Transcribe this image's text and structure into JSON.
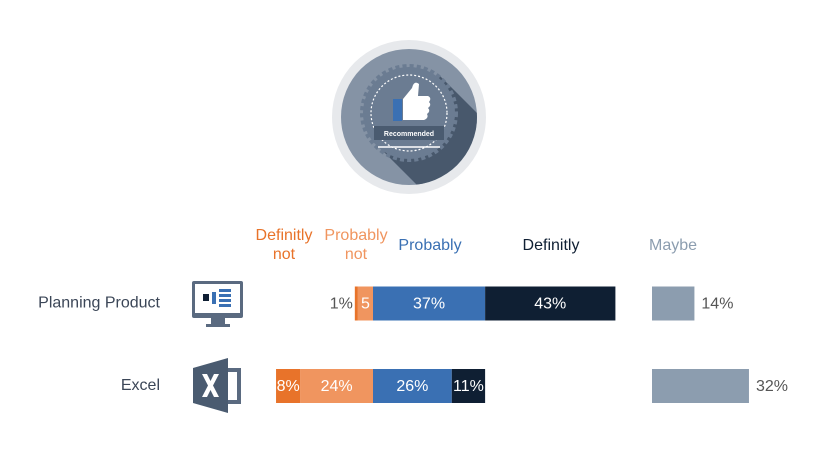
{
  "badge_label": "Recommended",
  "chart_data": {
    "type": "bar",
    "categories": [
      "Planning Product",
      "Excel"
    ],
    "series": [
      {
        "name": "Definitly not",
        "color": "#e8732a",
        "values": [
          1,
          8
        ],
        "value_labels": [
          "1%",
          "8%"
        ]
      },
      {
        "name": "Probably not",
        "color": "#f0955f",
        "values": [
          5,
          24
        ],
        "value_labels": [
          "5",
          "24%"
        ]
      },
      {
        "name": "Probably",
        "color": "#3a70b3",
        "values": [
          37,
          26
        ],
        "value_labels": [
          "37%",
          "26%"
        ]
      },
      {
        "name": "Definitly",
        "color": "#0f1f33",
        "values": [
          43,
          11
        ],
        "value_labels": [
          "43%",
          "11%"
        ]
      },
      {
        "name": "Maybe",
        "color": "#8c9daf",
        "values": [
          14,
          32
        ],
        "value_labels": [
          "14%",
          "32%"
        ]
      }
    ]
  }
}
